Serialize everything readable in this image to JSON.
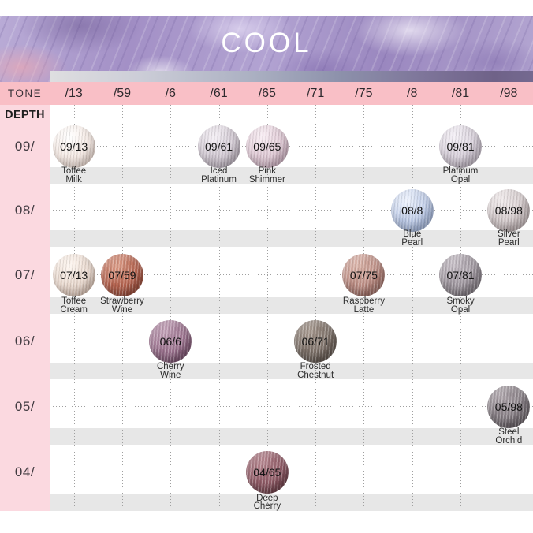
{
  "banner": {
    "title": "COOL"
  },
  "tone_row": {
    "label": "TONE"
  },
  "depth_header": "DEPTH",
  "colors": {
    "tone_row_pink": "#f9bfc6",
    "depth_column_pink": "#fbd9e0",
    "name_band_gray": "#e7e7e7",
    "banner_marble_purple": "#ab9ccb",
    "title_white": "#ffffff",
    "gradient_bar_left": "#dedee0",
    "gradient_bar_right": "#6f6288",
    "gridline_gray": "#9f9f9f"
  },
  "chart_data": {
    "type": "table",
    "title": "COOL",
    "columns": [
      "/13",
      "/59",
      "/6",
      "/61",
      "/65",
      "/71",
      "/75",
      "/8",
      "/81",
      "/98"
    ],
    "row_labels": [
      "09/",
      "08/",
      "07/",
      "06/",
      "05/",
      "04/"
    ],
    "rows": [
      {
        "depth": "09/",
        "swatches": [
          {
            "code": "09/13",
            "column": "/13",
            "name": [
              "Toffee",
              "Milk"
            ],
            "light": "#ffffff",
            "base": "#f5e9e3",
            "dark": "#e0cbc1"
          },
          {
            "code": "09/61",
            "column": "/61",
            "name": [
              "Iced",
              "Platinum"
            ],
            "light": "#f4eff5",
            "base": "#cfc6d0",
            "dark": "#a89da9"
          },
          {
            "code": "09/65",
            "column": "/65",
            "name": [
              "Pink",
              "Shimmer"
            ],
            "light": "#f8edf3",
            "base": "#ddc6d2",
            "dark": "#bb9cae"
          },
          {
            "code": "09/81",
            "column": "/81",
            "name": [
              "Platinum",
              "Opal"
            ],
            "light": "#f5f1f7",
            "base": "#d2cad5",
            "dark": "#aba0ad"
          }
        ]
      },
      {
        "depth": "08/",
        "swatches": [
          {
            "code": "08/8",
            "column": "/8",
            "name": [
              "Blue",
              "Pearl"
            ],
            "light": "#eef3fd",
            "base": "#b9c7e4",
            "dark": "#8fa3cb"
          },
          {
            "code": "08/98",
            "column": "/98",
            "name": [
              "Silver",
              "Pearl"
            ],
            "light": "#f1ebec",
            "base": "#cec4c5",
            "dark": "#a29495"
          }
        ]
      },
      {
        "depth": "07/",
        "swatches": [
          {
            "code": "07/13",
            "column": "/13",
            "name": [
              "Toffee",
              "Cream"
            ],
            "light": "#fdf6f0",
            "base": "#e9d8cd",
            "dark": "#c9ae9e"
          },
          {
            "code": "07/59",
            "column": "/59",
            "name": [
              "Strawberry",
              "Wine"
            ],
            "light": "#da9b86",
            "base": "#b5634f",
            "dark": "#7e3c2e"
          },
          {
            "code": "07/75",
            "column": "/75",
            "name": [
              "Raspberry",
              "Latte"
            ],
            "light": "#dcb6ab",
            "base": "#b98a81",
            "dark": "#84564f"
          },
          {
            "code": "07/81",
            "column": "/81",
            "name": [
              "Smoky",
              "Opal"
            ],
            "light": "#c6bec6",
            "base": "#9b939b",
            "dark": "#665f66"
          }
        ]
      },
      {
        "depth": "06/",
        "swatches": [
          {
            "code": "06/6",
            "column": "/6",
            "name": [
              "Cherry",
              "Wine"
            ],
            "light": "#c1a0b6",
            "base": "#99708c",
            "dark": "#613d57"
          },
          {
            "code": "06/71",
            "column": "/71",
            "name": [
              "Frosted",
              "Chestnut"
            ],
            "light": "#a6988e",
            "base": "#7b6f67",
            "dark": "#4c433d"
          }
        ]
      },
      {
        "depth": "05/",
        "swatches": [
          {
            "code": "05/98",
            "column": "/98",
            "name": [
              "Steel",
              "Orchid"
            ],
            "light": "#aea5ab",
            "base": "#847c82",
            "dark": "#4b4449"
          }
        ]
      },
      {
        "depth": "04/",
        "swatches": [
          {
            "code": "04/65",
            "column": "/65",
            "name": [
              "Deep",
              "Cherry"
            ],
            "light": "#b5868f",
            "base": "#905b66",
            "dark": "#552f37"
          }
        ]
      }
    ]
  }
}
